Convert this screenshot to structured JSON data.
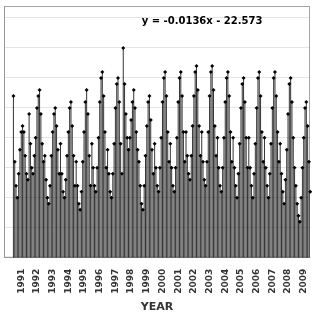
{
  "chart_data": {
    "type": "stem",
    "annotation": "y = -0.0136x - 22.573",
    "x_label": "YEAR",
    "color": "#000000",
    "marker": "diamond",
    "grid": "y",
    "tick_labels": "x",
    "xlim": [
      1990.4,
      2009.9
    ],
    "ylim": [
      26.5,
      28.6
    ],
    "yticks": [
      26.5,
      26.75,
      27,
      27.25,
      27.5,
      27.75,
      28,
      28.25,
      28.5
    ],
    "xticks": [
      {
        "value": 1991.5,
        "label": "1991"
      },
      {
        "value": 1992.5,
        "label": "1992"
      },
      {
        "value": 1993.5,
        "label": "1993"
      },
      {
        "value": 1994.5,
        "label": "1994"
      },
      {
        "value": 1995.5,
        "label": "1995"
      },
      {
        "value": 1996.5,
        "label": "1996"
      },
      {
        "value": 1997.5,
        "label": "1997"
      },
      {
        "value": 1998.5,
        "label": "1998"
      },
      {
        "value": 1999.5,
        "label": "1999"
      },
      {
        "value": 2000.5,
        "label": "2000"
      },
      {
        "value": 2001.5,
        "label": "2001"
      },
      {
        "value": 2002.5,
        "label": "2002"
      },
      {
        "value": 2003.5,
        "label": "2003"
      },
      {
        "value": 2004.5,
        "label": "2004"
      },
      {
        "value": 2005.5,
        "label": "2005"
      },
      {
        "value": 2006.5,
        "label": "2006"
      },
      {
        "value": 2007.5,
        "label": "2007"
      },
      {
        "value": 2008.5,
        "label": "2008"
      },
      {
        "value": 2009.5,
        "label": "2009"
      }
    ],
    "x": [
      1991,
      1991.0833333333333,
      1991.1666666666667,
      1991.25,
      1991.3333333333333,
      1991.4166666666667,
      1991.5,
      1991.5833333333333,
      1991.6666666666667,
      1991.75,
      1991.8333333333333,
      1991.9166666666667,
      1992,
      1992.0833333333333,
      1992.1666666666667,
      1992.25,
      1992.3333333333333,
      1992.4166666666667,
      1992.5,
      1992.5833333333333,
      1992.6666666666667,
      1992.75,
      1992.8333333333333,
      1992.9166666666667,
      1993,
      1993.0833333333333,
      1993.1666666666667,
      1993.25,
      1993.3333333333333,
      1993.4166666666667,
      1993.5,
      1993.5833333333333,
      1993.6666666666667,
      1993.75,
      1993.8333333333333,
      1993.9166666666667,
      1994,
      1994.0833333333333,
      1994.1666666666667,
      1994.25,
      1994.3333333333333,
      1994.4166666666667,
      1994.5,
      1994.5833333333333,
      1994.6666666666667,
      1994.75,
      1994.8333333333333,
      1994.9166666666667,
      1995,
      1995.0833333333333,
      1995.1666666666667,
      1995.25,
      1995.3333333333333,
      1995.4166666666667,
      1995.5,
      1995.5833333333333,
      1995.6666666666667,
      1995.75,
      1995.8333333333333,
      1995.9166666666667,
      1996,
      1996.0833333333333,
      1996.1666666666667,
      1996.25,
      1996.3333333333333,
      1996.4166666666667,
      1996.5,
      1996.5833333333333,
      1996.6666666666667,
      1996.75,
      1996.8333333333333,
      1996.9166666666667,
      1997,
      1997.0833333333333,
      1997.1666666666667,
      1997.25,
      1997.3333333333333,
      1997.4166666666667,
      1997.5,
      1997.5833333333333,
      1997.6666666666667,
      1997.75,
      1997.8333333333333,
      1997.9166666666667,
      1998,
      1998.0833333333333,
      1998.1666666666667,
      1998.25,
      1998.3333333333333,
      1998.4166666666667,
      1998.5,
      1998.5833333333333,
      1998.6666666666667,
      1998.75,
      1998.8333333333333,
      1998.9166666666667,
      1999,
      1999.0833333333333,
      1999.1666666666667,
      1999.25,
      1999.3333333333333,
      1999.4166666666667,
      1999.5,
      1999.5833333333333,
      1999.6666666666667,
      1999.75,
      1999.8333333333333,
      1999.9166666666667,
      2000,
      2000.0833333333333,
      2000.1666666666667,
      2000.25,
      2000.3333333333333,
      2000.4166666666667,
      2000.5,
      2000.5833333333333,
      2000.6666666666667,
      2000.75,
      2000.8333333333333,
      2000.9166666666667,
      2001,
      2001.0833333333333,
      2001.1666666666667,
      2001.25,
      2001.3333333333333,
      2001.4166666666667,
      2001.5,
      2001.5833333333333,
      2001.6666666666667,
      2001.75,
      2001.8333333333333,
      2001.9166666666667,
      2002,
      2002.0833333333333,
      2002.1666666666667,
      2002.25,
      2002.3333333333333,
      2002.4166666666667,
      2002.5,
      2002.5833333333333,
      2002.6666666666667,
      2002.75,
      2002.8333333333333,
      2002.9166666666667,
      2003,
      2003.0833333333333,
      2003.1666666666667,
      2003.25,
      2003.3333333333333,
      2003.4166666666667,
      2003.5,
      2003.5833333333333,
      2003.6666666666667,
      2003.75,
      2003.8333333333333,
      2003.9166666666667,
      2004,
      2004.0833333333333,
      2004.1666666666667,
      2004.25,
      2004.3333333333333,
      2004.4166666666667,
      2004.5,
      2004.5833333333333,
      2004.6666666666667,
      2004.75,
      2004.8333333333333,
      2004.9166666666667,
      2005,
      2005.0833333333333,
      2005.1666666666667,
      2005.25,
      2005.3333333333333,
      2005.4166666666667,
      2005.5,
      2005.5833333333333,
      2005.6666666666667,
      2005.75,
      2005.8333333333333,
      2005.9166666666667,
      2006,
      2006.0833333333333,
      2006.1666666666667,
      2006.25,
      2006.3333333333333,
      2006.4166666666667,
      2006.5,
      2006.5833333333333,
      2006.6666666666667,
      2006.75,
      2006.8333333333333,
      2006.9166666666667,
      2007,
      2007.0833333333333,
      2007.1666666666667,
      2007.25,
      2007.3333333333333,
      2007.4166666666667,
      2007.5,
      2007.5833333333333,
      2007.6666666666667,
      2007.75,
      2007.8333333333333,
      2007.9166666666667,
      2008,
      2008.0833333333333,
      2008.1666666666667,
      2008.25,
      2008.3333333333333,
      2008.4166666666667,
      2008.5,
      2008.5833333333333,
      2008.6666666666667,
      2008.75,
      2008.8333333333333,
      2008.9166666666667,
      2009,
      2009.0833333333333,
      2009.1666666666667,
      2009.25,
      2009.3333333333333,
      2009.4166666666667,
      2009.5,
      2009.5833333333333,
      2009.6666666666667,
      2009.75,
      2009.8333333333333,
      2009.9166666666667
    ],
    "values": [
      27.85,
      27.3,
      27.1,
      27.0,
      27.2,
      27.4,
      27.55,
      27.6,
      27.55,
      27.35,
      27.2,
      27.15,
      27.7,
      27.45,
      27.25,
      27.2,
      27.35,
      27.5,
      27.75,
      27.85,
      27.9,
      27.7,
      27.45,
      27.3,
      27.35,
      27.15,
      27.0,
      26.95,
      27.1,
      27.35,
      27.55,
      27.7,
      27.75,
      27.6,
      27.4,
      27.2,
      27.45,
      27.2,
      27.05,
      27.0,
      27.15,
      27.35,
      27.55,
      27.75,
      27.8,
      27.6,
      27.35,
      27.1,
      27.3,
      27.1,
      26.95,
      26.9,
      27.05,
      27.3,
      27.55,
      27.8,
      27.9,
      27.7,
      27.35,
      27.1,
      27.45,
      27.25,
      27.1,
      27.05,
      27.25,
      27.5,
      27.8,
      28.0,
      28.05,
      27.85,
      27.55,
      27.25,
      27.4,
      27.2,
      27.05,
      27.0,
      27.2,
      27.45,
      27.75,
      27.95,
      28.0,
      27.8,
      27.45,
      27.2,
      28.25,
      27.95,
      27.7,
      27.5,
      27.4,
      27.5,
      27.65,
      27.8,
      27.9,
      27.75,
      27.55,
      27.4,
      27.3,
      27.1,
      26.95,
      26.9,
      27.1,
      27.35,
      27.6,
      27.8,
      27.85,
      27.65,
      27.4,
      27.2,
      27.45,
      27.25,
      27.1,
      27.05,
      27.25,
      27.5,
      27.8,
      28.0,
      28.05,
      27.85,
      27.55,
      27.3,
      27.45,
      27.25,
      27.1,
      27.05,
      27.25,
      27.5,
      27.8,
      28.0,
      28.05,
      27.85,
      27.55,
      27.3,
      27.55,
      27.35,
      27.2,
      27.15,
      27.35,
      27.6,
      27.85,
      28.05,
      28.1,
      27.9,
      27.6,
      27.35,
      27.55,
      27.3,
      27.15,
      27.1,
      27.3,
      27.55,
      27.85,
      28.05,
      28.1,
      27.9,
      27.6,
      27.35,
      27.5,
      27.25,
      27.1,
      27.05,
      27.25,
      27.5,
      27.8,
      28.0,
      28.05,
      27.85,
      27.55,
      27.3,
      27.5,
      27.25,
      27.1,
      27.0,
      27.2,
      27.45,
      27.75,
      27.95,
      28.0,
      27.8,
      27.5,
      27.25,
      27.5,
      27.25,
      27.1,
      27.0,
      27.2,
      27.45,
      27.75,
      28.0,
      28.05,
      27.85,
      27.55,
      27.3,
      27.5,
      27.25,
      27.1,
      27.0,
      27.2,
      27.45,
      27.75,
      28.0,
      28.05,
      27.85,
      27.55,
      27.3,
      27.45,
      27.2,
      27.05,
      26.95,
      27.15,
      27.4,
      27.7,
      27.95,
      28.0,
      27.8,
      27.5,
      27.25,
      27.1,
      26.95,
      26.85,
      26.8,
      27.0,
      27.25,
      27.5,
      27.75,
      27.8,
      27.6,
      27.3,
      27.05
    ]
  }
}
